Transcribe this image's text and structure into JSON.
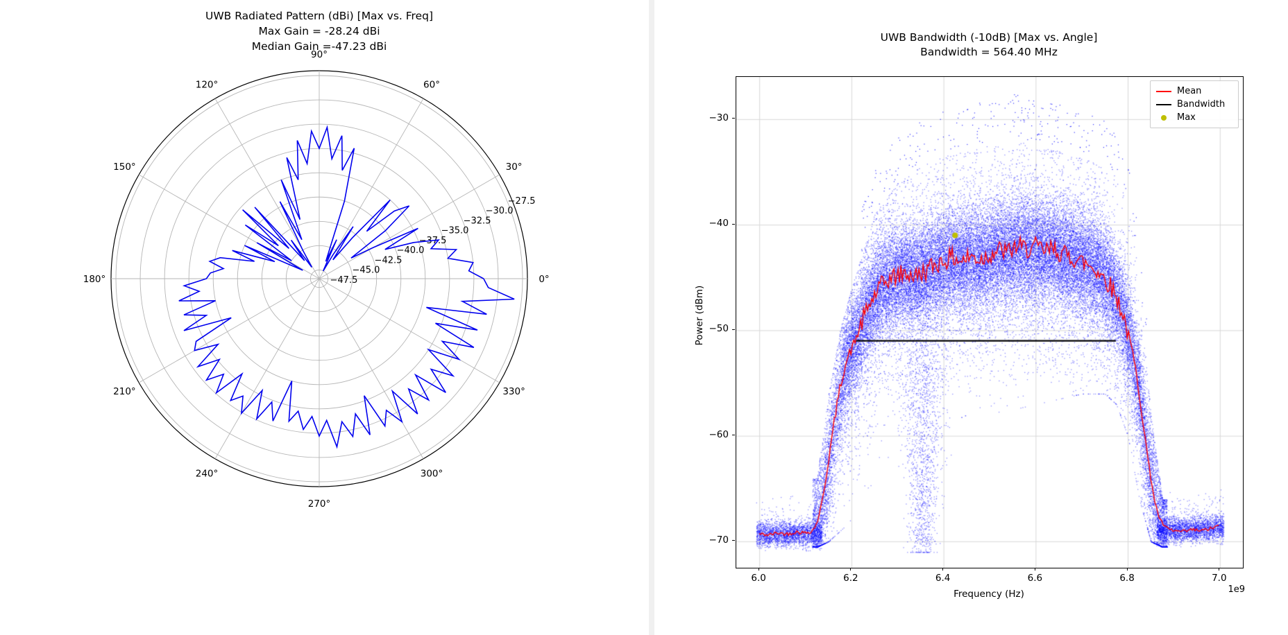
{
  "chart_data": [
    {
      "type": "line",
      "projection": "polar",
      "title_lines": [
        "UWB Radiated Pattern (dBi) [Max vs. Freq]",
        "Max Gain = -28.24 dBi",
        "Median Gain =-47.23 dBi"
      ],
      "max_gain_dbi": -28.24,
      "median_gain_dbi": -47.23,
      "line_color": "#0000ee",
      "grid_color": "#b5b5b5",
      "outer_circle_color": "#000000",
      "angle_ticks_deg": [
        0,
        30,
        60,
        90,
        120,
        150,
        180,
        210,
        240,
        270,
        300,
        330
      ],
      "angle_tick_labels": [
        "0°",
        "30°",
        "60°",
        "90°",
        "120°",
        "150°",
        "180°",
        "210°",
        "240°",
        "270°",
        "300°",
        "330°"
      ],
      "r_ticks": [
        -47.5,
        -45.0,
        -42.5,
        -40.0,
        -37.5,
        -35.0,
        -32.5,
        -30.0,
        -27.5
      ],
      "r_tick_labels": [
        "−47.5",
        "−45.0",
        "−42.5",
        "−40.0",
        "−37.5",
        "−35.0",
        "−32.5",
        "−30.0",
        "−27.5"
      ],
      "r_min": -48.4,
      "r_max": -27.0,
      "r_label_angle_deg": 24,
      "series": [
        {
          "name": "max_gain_vs_angle",
          "theta_deg": [
            0,
            3,
            6,
            9,
            12,
            15,
            18,
            21,
            24,
            27,
            30,
            33,
            36,
            39,
            42,
            45,
            48,
            51,
            54,
            57,
            60,
            63,
            66,
            69,
            72,
            75,
            78,
            81,
            84,
            87,
            90,
            93,
            96,
            99,
            102,
            105,
            108,
            111,
            114,
            117,
            120,
            123,
            126,
            129,
            132,
            135,
            138,
            141,
            144,
            147,
            150,
            153,
            156,
            159,
            162,
            165,
            168,
            171,
            174,
            177,
            180,
            183,
            186,
            189,
            192,
            195,
            198,
            201,
            204,
            207,
            210,
            213,
            216,
            219,
            222,
            225,
            228,
            231,
            234,
            237,
            240,
            243,
            246,
            249,
            252,
            255,
            258,
            261,
            264,
            267,
            270,
            273,
            276,
            279,
            282,
            285,
            288,
            291,
            294,
            297,
            300,
            303,
            306,
            309,
            312,
            315,
            318,
            321,
            324,
            327,
            330,
            333,
            336,
            339,
            342,
            345,
            348,
            351,
            354,
            357
          ],
          "r_dbi": [
            -31.5,
            -33.0,
            -32.5,
            -35.0,
            -34.0,
            -36.5,
            -35.5,
            -38.0,
            -41.0,
            -37.0,
            -42.0,
            -44.5,
            -40.0,
            -36.5,
            -38.0,
            -41.5,
            -37.5,
            -43.0,
            -46.0,
            -42.0,
            -45.5,
            -47.5,
            -44.0,
            -46.5,
            -40.0,
            -34.5,
            -37.0,
            -33.5,
            -36.0,
            -32.8,
            -35.0,
            -33.2,
            -36.5,
            -34.0,
            -38.0,
            -35.5,
            -42.0,
            -37.5,
            -44.0,
            -39.5,
            -45.0,
            -47.0,
            -43.5,
            -46.0,
            -38.5,
            -44.0,
            -37.8,
            -43.0,
            -39.0,
            -45.0,
            -41.0,
            -46.5,
            -40.0,
            -43.5,
            -39.0,
            -41.5,
            -38.0,
            -37.0,
            -38.5,
            -37.2,
            -36.8,
            -34.5,
            -36.0,
            -33.8,
            -37.5,
            -34.0,
            -36.2,
            -33.5,
            -38.5,
            -34.2,
            -33.6,
            -36.0,
            -33.0,
            -35.2,
            -32.8,
            -34.5,
            -32.6,
            -35.8,
            -32.9,
            -34.0,
            -32.4,
            -35.5,
            -32.6,
            -34.8,
            -33.0,
            -37.5,
            -33.4,
            -34.6,
            -32.8,
            -34.2,
            -32.2,
            -33.8,
            -31.0,
            -33.5,
            -31.8,
            -34.0,
            -31.5,
            -35.5,
            -31.8,
            -33.2,
            -31.4,
            -34.6,
            -31.2,
            -33.8,
            -31.6,
            -34.4,
            -30.9,
            -33.6,
            -31.4,
            -35.0,
            -31.8,
            -34.2,
            -31.0,
            -35.6,
            -31.3,
            -37.0,
            -30.8,
            -33.5,
            -28.24,
            -31.0
          ]
        }
      ]
    },
    {
      "type": "scatter",
      "title_lines": [
        "UWB Bandwidth (-10dB) [Max vs. Angle]",
        "Bandwidth = 564.40 MHz"
      ],
      "bandwidth_mhz": 564.4,
      "xlabel": "Frequency (Hz)",
      "ylabel": "Power (dBm)",
      "x_offset_label": "1e9",
      "xlim_ghz": [
        5.95,
        7.05
      ],
      "ylim_dbm": [
        -72.5,
        -26.0
      ],
      "x_ticks_ghz": [
        6.0,
        6.2,
        6.4,
        6.6,
        6.8,
        7.0
      ],
      "x_tick_labels": [
        "6.0",
        "6.2",
        "6.4",
        "6.6",
        "6.8",
        "7.0"
      ],
      "y_ticks_dbm": [
        -30,
        -40,
        -50,
        -60,
        -70
      ],
      "y_tick_labels": [
        "−30",
        "−40",
        "−50",
        "−60",
        "−70"
      ],
      "grid": true,
      "grid_color": "#d8d8d8",
      "scatter_color": "#0000ff",
      "legend": [
        {
          "label": "Mean",
          "color": "#ff0000",
          "marker": "line"
        },
        {
          "label": "Bandwidth",
          "color": "#000000",
          "marker": "line"
        },
        {
          "label": "Max",
          "color": "#bfbf00",
          "marker": "dot"
        }
      ],
      "mean_line": {
        "color": "#ff0000",
        "x_ghz": [
          6.0,
          6.02,
          6.04,
          6.06,
          6.08,
          6.1,
          6.115,
          6.125,
          6.135,
          6.145,
          6.155,
          6.165,
          6.175,
          6.185,
          6.195,
          6.21,
          6.225,
          6.24,
          6.26,
          6.28,
          6.3,
          6.32,
          6.34,
          6.36,
          6.38,
          6.4,
          6.42,
          6.44,
          6.46,
          6.48,
          6.5,
          6.52,
          6.54,
          6.56,
          6.58,
          6.6,
          6.62,
          6.64,
          6.66,
          6.68,
          6.7,
          6.72,
          6.74,
          6.76,
          6.775,
          6.79,
          6.8,
          6.81,
          6.82,
          6.83,
          6.84,
          6.85,
          6.86,
          6.87,
          6.885,
          6.9,
          6.92,
          6.94,
          6.96,
          6.98,
          7.0
        ],
        "y_dbm": [
          -69.3,
          -69.4,
          -69.2,
          -69.3,
          -69.1,
          -69.2,
          -69.0,
          -68.3,
          -66.5,
          -64.0,
          -61.0,
          -58.0,
          -55.5,
          -53.5,
          -52.3,
          -50.8,
          -49.0,
          -47.5,
          -46.0,
          -45.2,
          -44.8,
          -44.6,
          -44.9,
          -44.4,
          -43.8,
          -43.4,
          -43.1,
          -43.4,
          -43.0,
          -43.3,
          -42.8,
          -42.4,
          -42.6,
          -42.0,
          -42.3,
          -42.1,
          -42.5,
          -42.3,
          -42.8,
          -43.1,
          -43.5,
          -43.9,
          -44.6,
          -45.6,
          -46.8,
          -48.5,
          -50.2,
          -52.0,
          -54.5,
          -57.5,
          -61.0,
          -64.0,
          -66.5,
          -68.0,
          -68.8,
          -69.0,
          -69.1,
          -68.9,
          -69.0,
          -68.8,
          -68.5
        ]
      },
      "bandwidth_line": {
        "color": "#000000",
        "y_dbm": -51.0,
        "x_start_ghz": 6.21,
        "x_end_ghz": 6.774
      },
      "max_point": {
        "color": "#bfbf00",
        "x_ghz": 6.425,
        "y_dbm": -41.0
      },
      "scatter_cloud": {
        "band_x_ghz": [
          6.125,
          6.15,
          6.175,
          6.2,
          6.25,
          6.3,
          6.35,
          6.4,
          6.45,
          6.5,
          6.55,
          6.6,
          6.65,
          6.7,
          6.75,
          6.775,
          6.8,
          6.825,
          6.85,
          6.875
        ],
        "band_top_dbm": [
          -64,
          -56,
          -50,
          -46,
          -39,
          -36,
          -34.5,
          -33.5,
          -33,
          -32.5,
          -32,
          -32.5,
          -33,
          -33.5,
          -34.5,
          -35.5,
          -38,
          -45,
          -58,
          -66
        ],
        "band_bottom_dbm": [
          -70.5,
          -70,
          -69,
          -68,
          -64,
          -62,
          -60,
          -59,
          -58,
          -58,
          -57.5,
          -57,
          -56.5,
          -56,
          -56,
          -57,
          -60,
          -66,
          -70,
          -70.5
        ],
        "noise_floor_left": {
          "x_range_ghz": [
            5.993,
            6.135
          ],
          "level_dbm": -69.3,
          "spread_db": 1.0
        },
        "noise_floor_right": {
          "x_range_ghz": [
            6.862,
            7.008
          ],
          "level_dbm": -69.0,
          "spread_db": 1.0
        },
        "funnel": {
          "center_ghz": 6.355,
          "top_dbm": -52,
          "bottom_dbm": -71,
          "width_ghz": 0.1
        }
      }
    }
  ]
}
